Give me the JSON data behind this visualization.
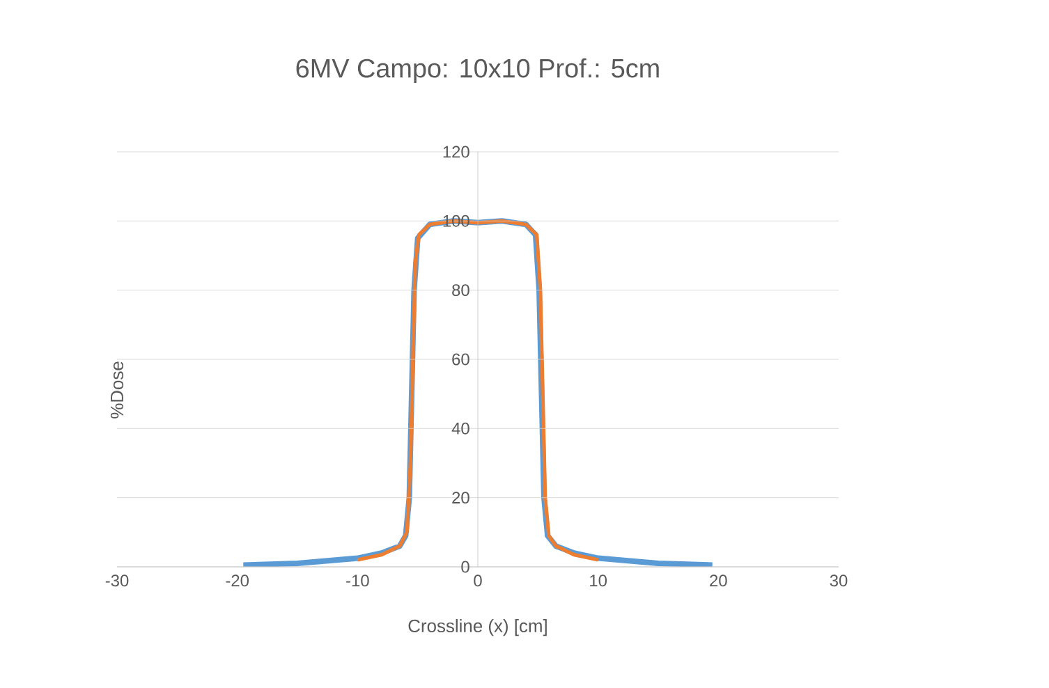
{
  "chart_data": {
    "type": "line",
    "title": "6MV Campo: 10x10 Prof.: 5cm",
    "xlabel": "Crossline (x) [cm]",
    "ylabel": "%Dose",
    "xlim": [
      -30,
      30
    ],
    "xticks": [
      -30,
      -20,
      -10,
      0,
      10,
      20,
      30
    ],
    "ylim": [
      0,
      120
    ],
    "yticks": [
      0,
      20,
      40,
      60,
      80,
      100,
      120
    ],
    "grid": "y",
    "series": [
      {
        "color": "#5b9bd5",
        "x": [
          -19.5,
          -15,
          -10,
          -8,
          -6.5,
          -6,
          -5.7,
          -5.5,
          -5.3,
          -5,
          -4,
          -2,
          0,
          2,
          4,
          4.8,
          5.1,
          5.3,
          5.5,
          5.8,
          6.5,
          8,
          10,
          15,
          19.5
        ],
        "values": [
          0.5,
          1,
          2.5,
          4,
          6,
          9,
          20,
          50,
          80,
          95,
          99,
          100,
          99.5,
          100,
          99,
          96,
          80,
          50,
          20,
          9,
          6,
          4,
          2.5,
          1,
          0.5
        ]
      },
      {
        "color": "#ed7d31",
        "x": [
          -10,
          -8,
          -6.5,
          -5.9,
          -5.6,
          -5.4,
          -5.2,
          -4.9,
          -4,
          -2,
          0,
          2,
          4,
          4.9,
          5.2,
          5.4,
          5.6,
          5.9,
          6.5,
          8,
          10
        ],
        "values": [
          2,
          3.5,
          6,
          10,
          30,
          60,
          88,
          96,
          99,
          100,
          99.5,
          100,
          99,
          96,
          80,
          50,
          20,
          9,
          6,
          3.5,
          2
        ]
      }
    ]
  }
}
